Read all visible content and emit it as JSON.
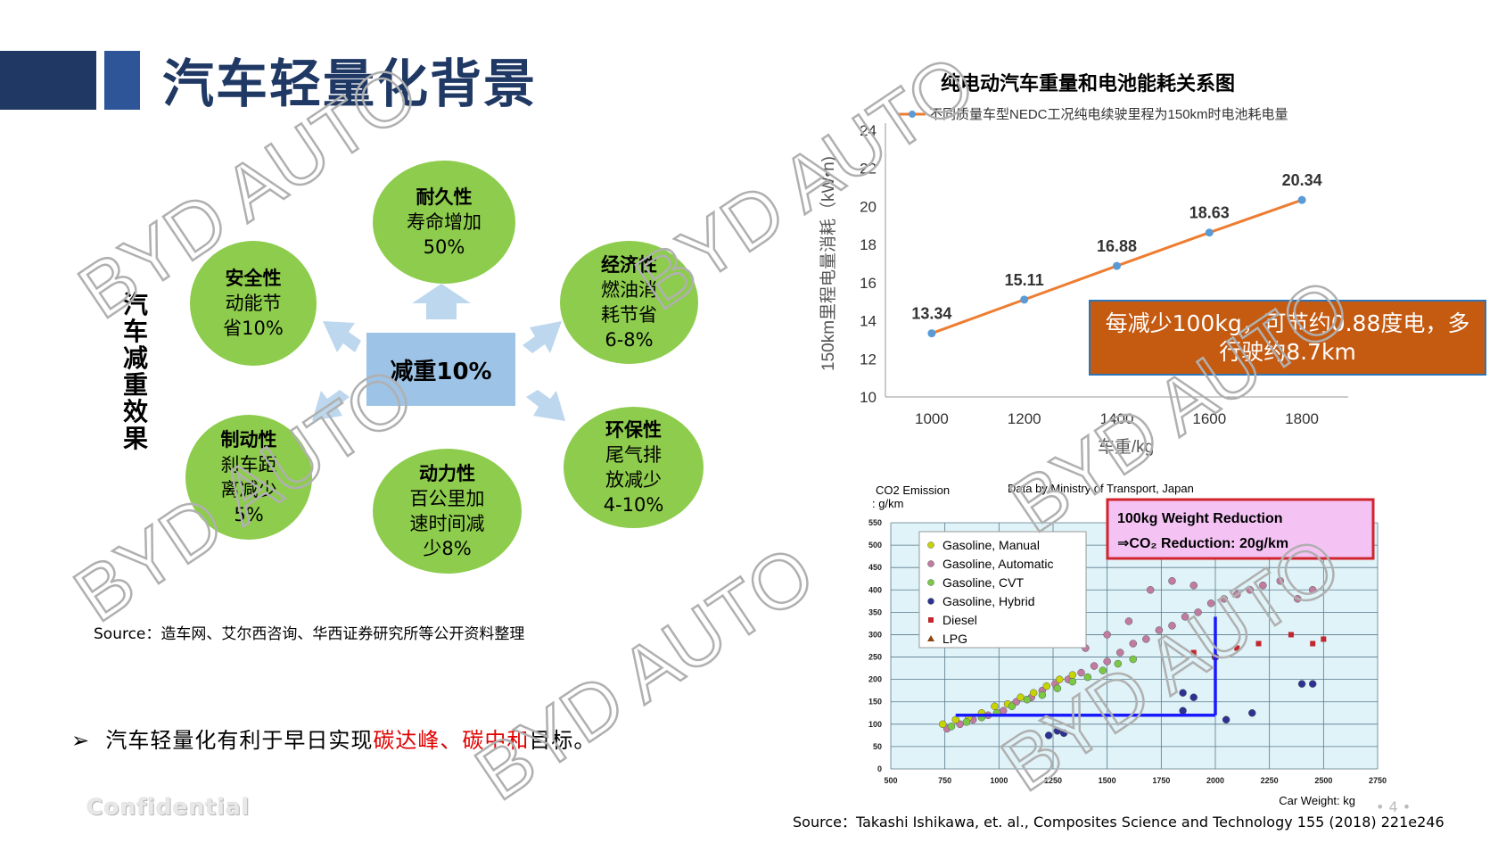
{
  "header": {
    "title": "汽车轻量化背景"
  },
  "diagram": {
    "side_label": "汽车减重效果",
    "center": "减重10%",
    "bubbles": [
      {
        "title": "耐久性",
        "lines": [
          "寿命增加",
          "50%"
        ]
      },
      {
        "title": "经济性",
        "lines": [
          "燃油消",
          "耗节省",
          "6-8%"
        ]
      },
      {
        "title": "环保性",
        "lines": [
          "尾气排",
          "放减少",
          "4-10%"
        ]
      },
      {
        "title": "动力性",
        "lines": [
          "百公里加",
          "速时间减",
          "少8%"
        ]
      },
      {
        "title": "制动性",
        "lines": [
          "刹车距",
          "离减少",
          "5%"
        ]
      },
      {
        "title": "安全性",
        "lines": [
          "动能节",
          "省10%"
        ]
      }
    ],
    "source": "Source：造车网、艾尔西咨询、华西证券研究所等公开资料整理"
  },
  "bullet": {
    "marker": "➢",
    "text_before": "汽车轻量化有利于早日实现",
    "highlight": "碳达峰、碳中和",
    "text_after": "目标。"
  },
  "footer": {
    "confidential": "Confidential",
    "page": "• 4 •",
    "source2": "Source：Takashi Ishikawa, et. al., Composites Science and Technology 155 (2018) 221e246"
  },
  "watermark": "BYD AUTO",
  "colors": {
    "header_dark": "#1f3864",
    "header_blue": "#2e5597",
    "bubble_green": "#8dcc4c",
    "center_blue": "#9dc3e6",
    "line_orange": "#ed7d31",
    "marker_blue": "#5b9bd5",
    "callout_orange": "#c55a11",
    "highlight_red": "#e00000"
  },
  "chart_data": [
    {
      "type": "line",
      "title": "纯电动汽车重量和电池能耗关系图",
      "legend": "不同质量车型NEDC工况纯电续驶里程为150km时电池耗电量",
      "xlabel": "车重/kg",
      "ylabel": "150km里程电量消耗（kW•h)",
      "x": [
        1000,
        1200,
        1400,
        1600,
        1800
      ],
      "series": [
        {
          "name": "不同质量车型NEDC工况纯电续驶里程为150km时电池耗电量",
          "values": [
            13.34,
            15.11,
            16.88,
            18.63,
            20.34
          ]
        }
      ],
      "data_labels": [
        "13.34",
        "15.11",
        "16.88",
        "18.63",
        "20.34"
      ],
      "xticks": [
        "1000",
        "1200",
        "1400",
        "1600",
        "1800"
      ],
      "yticks": [
        "10",
        "12",
        "14",
        "16",
        "18",
        "20",
        "22",
        "24"
      ],
      "xlim": [
        900,
        1900
      ],
      "ylim": [
        10,
        24
      ],
      "annotation": "每减少100kg，可节约0.88度电，多行驶约8.7km"
    },
    {
      "type": "scatter",
      "header_left": "CO2 Emission",
      "header_unit": ": g/km",
      "header_right": "Data by Ministry of Transport, Japan",
      "xlabel": "Car Weight: kg",
      "xticks": [
        "500",
        "750",
        "1000",
        "1250",
        "1500",
        "1750",
        "2000",
        "2250",
        "2500",
        "2750"
      ],
      "yticks": [
        "0",
        "50",
        "100",
        "150",
        "200",
        "250",
        "300",
        "350",
        "400",
        "450",
        "500",
        "550"
      ],
      "xlim": [
        500,
        2750
      ],
      "ylim": [
        0,
        550
      ],
      "legend": [
        {
          "name": "Gasoline, Manual",
          "color": "#c8d400"
        },
        {
          "name": "Gasoline, Automatic",
          "color": "#c27ba0"
        },
        {
          "name": "Gasoline, CVT",
          "color": "#7ac943"
        },
        {
          "name": "Gasoline, Hybrid",
          "color": "#2e3192"
        },
        {
          "name": "Diesel",
          "color": "#c1272d"
        },
        {
          "name": "LPG",
          "color": "#8b4513"
        }
      ],
      "annotation_line1": "100kg Weight Reduction",
      "annotation_line2": "⇒CO₂ Reduction: 20g/km",
      "series": [
        {
          "name": "Gasoline, Automatic",
          "points": [
            [
              760,
              90
            ],
            [
              820,
              100
            ],
            [
              880,
              110
            ],
            [
              950,
              120
            ],
            [
              1020,
              130
            ],
            [
              1080,
              150
            ],
            [
              1150,
              160
            ],
            [
              1200,
              175
            ],
            [
              1260,
              190
            ],
            [
              1320,
              200
            ],
            [
              1380,
              215
            ],
            [
              1440,
              230
            ],
            [
              1500,
              240
            ],
            [
              1560,
              260
            ],
            [
              1620,
              280
            ],
            [
              1680,
              290
            ],
            [
              1740,
              310
            ],
            [
              1800,
              320
            ],
            [
              1860,
              340
            ],
            [
              1920,
              350
            ],
            [
              1980,
              370
            ],
            [
              2040,
              380
            ],
            [
              2100,
              390
            ],
            [
              2160,
              400
            ],
            [
              2220,
              410
            ],
            [
              2300,
              420
            ],
            [
              2380,
              380
            ],
            [
              2450,
              400
            ],
            [
              1700,
              400
            ],
            [
              1800,
              420
            ],
            [
              1900,
              410
            ],
            [
              1600,
              330
            ],
            [
              1500,
              300
            ],
            [
              1400,
              270
            ]
          ]
        },
        {
          "name": "Gasoline, Manual",
          "points": [
            [
              740,
              100
            ],
            [
              800,
              110
            ],
            [
              860,
              115
            ],
            [
              920,
              125
            ],
            [
              980,
              140
            ],
            [
              1040,
              145
            ],
            [
              1100,
              160
            ],
            [
              1160,
              170
            ],
            [
              1220,
              185
            ],
            [
              1280,
              200
            ],
            [
              1340,
              210
            ]
          ]
        },
        {
          "name": "Gasoline, CVT",
          "points": [
            [
              780,
              95
            ],
            [
              850,
              105
            ],
            [
              920,
              115
            ],
            [
              990,
              125
            ],
            [
              1060,
              140
            ],
            [
              1130,
              155
            ],
            [
              1200,
              165
            ],
            [
              1270,
              180
            ],
            [
              1340,
              195
            ],
            [
              1410,
              205
            ],
            [
              1480,
              220
            ],
            [
              1550,
              235
            ],
            [
              1620,
              245
            ]
          ]
        },
        {
          "name": "Gasoline, Hybrid",
          "points": [
            [
              1230,
              75
            ],
            [
              1270,
              85
            ],
            [
              1300,
              80
            ],
            [
              1850,
              170
            ],
            [
              1900,
              160
            ],
            [
              2050,
              110
            ],
            [
              2170,
              125
            ],
            [
              2400,
              190
            ],
            [
              2450,
              190
            ],
            [
              1850,
              130
            ],
            [
              2000,
              250
            ]
          ]
        },
        {
          "name": "Diesel",
          "points": [
            [
              1900,
              260
            ],
            [
              2000,
              250
            ],
            [
              2100,
              270
            ],
            [
              2200,
              280
            ],
            [
              2350,
              300
            ],
            [
              2450,
              280
            ],
            [
              2500,
              290
            ]
          ]
        }
      ]
    }
  ]
}
